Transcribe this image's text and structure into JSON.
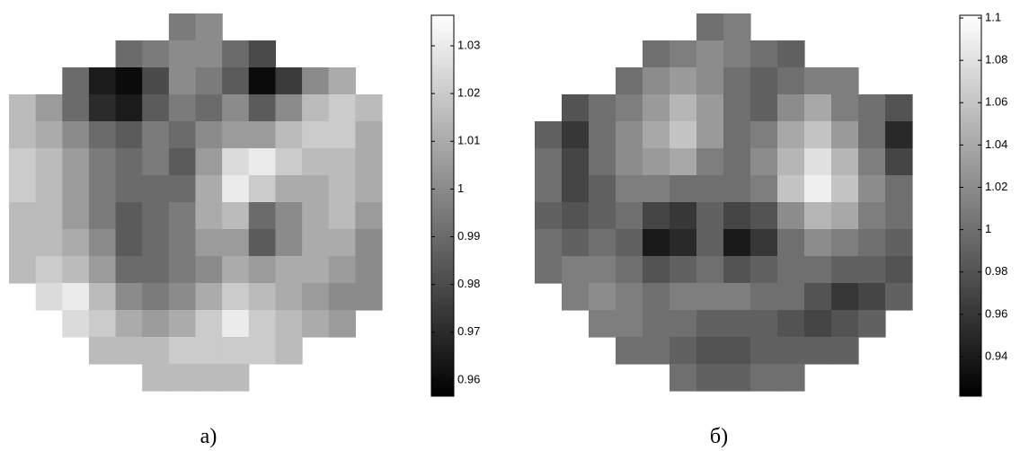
{
  "chart_data": [
    {
      "type": "heatmap",
      "caption": "а)",
      "zlim": [
        0.9566,
        1.0364
      ],
      "zticks": [
        0.96,
        0.97,
        0.98,
        0.99,
        1,
        1.01,
        1.02,
        1.03
      ],
      "values": [
        [
          null,
          null,
          null,
          null,
          null,
          null,
          0.995,
          1.0,
          null,
          null,
          null,
          null,
          null,
          null
        ],
        [
          null,
          null,
          null,
          null,
          0.99,
          0.995,
          1.0,
          1.0,
          0.99,
          0.98,
          null,
          null,
          null,
          null
        ],
        [
          null,
          null,
          0.99,
          0.965,
          0.96,
          0.98,
          1.0,
          0.995,
          0.985,
          0.96,
          0.975,
          1.0,
          1.01,
          null
        ],
        [
          1.015,
          1.005,
          0.99,
          0.97,
          0.965,
          0.985,
          0.995,
          0.99,
          1.0,
          0.985,
          1.0,
          1.015,
          1.02,
          1.015
        ],
        [
          1.015,
          1.01,
          1.0,
          0.99,
          0.985,
          0.995,
          0.99,
          1.0,
          1.005,
          1.005,
          1.015,
          1.02,
          1.02,
          1.01
        ],
        [
          1.02,
          1.015,
          1.005,
          0.995,
          0.99,
          0.995,
          0.985,
          1.005,
          1.025,
          1.03,
          1.02,
          1.015,
          1.015,
          1.01
        ],
        [
          1.02,
          1.015,
          1.005,
          0.995,
          0.99,
          0.99,
          0.99,
          1.01,
          1.03,
          1.02,
          1.01,
          1.01,
          1.015,
          1.01
        ],
        [
          1.015,
          1.015,
          1.005,
          0.995,
          0.985,
          0.99,
          0.995,
          1.01,
          1.015,
          0.99,
          1.0,
          1.01,
          1.015,
          1.005
        ],
        [
          1.015,
          1.015,
          1.01,
          1.0,
          0.985,
          0.99,
          0.995,
          1.005,
          1.005,
          0.985,
          1.0,
          1.01,
          1.01,
          1.0
        ],
        [
          1.015,
          1.02,
          1.015,
          1.005,
          0.99,
          0.99,
          0.995,
          1.0,
          1.01,
          1.005,
          1.01,
          1.01,
          1.005,
          1.0
        ],
        [
          null,
          1.025,
          1.03,
          1.015,
          1.0,
          0.995,
          1.0,
          1.01,
          1.02,
          1.015,
          1.01,
          1.005,
          1.0,
          1.0
        ],
        [
          null,
          null,
          1.025,
          1.02,
          1.01,
          1.005,
          1.01,
          1.02,
          1.03,
          1.02,
          1.015,
          1.01,
          1.005,
          null
        ],
        [
          null,
          null,
          null,
          1.015,
          1.015,
          1.015,
          1.02,
          1.02,
          1.02,
          1.02,
          1.015,
          null,
          null,
          null
        ],
        [
          null,
          null,
          null,
          null,
          null,
          1.015,
          1.015,
          1.015,
          1.015,
          null,
          null,
          null,
          null,
          null
        ]
      ]
    },
    {
      "type": "heatmap",
      "caption": "б)",
      "zlim": [
        0.9213,
        1.1013
      ],
      "zticks": [
        0.94,
        0.96,
        0.98,
        1,
        1.02,
        1.04,
        1.06,
        1.08,
        1.1
      ],
      "values": [
        [
          null,
          null,
          null,
          null,
          null,
          null,
          1.0,
          1.01,
          null,
          null,
          null,
          null,
          null,
          null
        ],
        [
          null,
          null,
          null,
          null,
          1.0,
          1.01,
          1.02,
          1.01,
          1.0,
          0.99,
          null,
          null,
          null,
          null
        ],
        [
          null,
          null,
          null,
          1.0,
          1.02,
          1.03,
          1.02,
          1.0,
          0.99,
          1.0,
          1.01,
          1.01,
          null,
          null
        ],
        [
          null,
          0.98,
          1.0,
          1.01,
          1.03,
          1.05,
          1.03,
          1.0,
          0.99,
          1.02,
          1.04,
          1.01,
          1.0,
          0.98
        ],
        [
          0.99,
          0.96,
          1.0,
          1.02,
          1.04,
          1.06,
          1.03,
          1.0,
          1.01,
          1.04,
          1.06,
          1.03,
          1.0,
          0.95
        ],
        [
          1.0,
          0.97,
          1.0,
          1.02,
          1.03,
          1.04,
          1.01,
          1.0,
          1.02,
          1.05,
          1.08,
          1.05,
          1.01,
          0.97
        ],
        [
          1.0,
          0.97,
          0.99,
          1.01,
          1.01,
          1.0,
          1.0,
          1.0,
          1.01,
          1.06,
          1.09,
          1.06,
          1.02,
          1.0
        ],
        [
          0.99,
          0.98,
          0.99,
          1.0,
          0.97,
          0.96,
          0.99,
          0.97,
          0.98,
          1.02,
          1.05,
          1.04,
          1.01,
          1.0
        ],
        [
          1.0,
          0.99,
          1.0,
          0.99,
          0.94,
          0.95,
          0.99,
          0.94,
          0.96,
          1.0,
          1.02,
          1.01,
          1.0,
          0.99
        ],
        [
          1.0,
          1.01,
          1.01,
          1.0,
          0.98,
          0.99,
          1.0,
          0.98,
          0.99,
          1.0,
          1.0,
          0.99,
          0.99,
          0.98
        ],
        [
          null,
          1.01,
          1.02,
          1.01,
          1.0,
          1.01,
          1.01,
          1.01,
          1.0,
          1.0,
          0.98,
          0.96,
          0.97,
          0.99
        ],
        [
          null,
          null,
          1.01,
          1.01,
          1.0,
          1.0,
          0.99,
          0.99,
          0.99,
          0.98,
          0.97,
          0.98,
          0.99,
          null
        ],
        [
          null,
          null,
          null,
          1.0,
          1.0,
          0.99,
          0.98,
          0.98,
          0.99,
          0.99,
          0.99,
          0.99,
          null,
          null
        ],
        [
          null,
          null,
          null,
          null,
          null,
          1.0,
          0.99,
          0.99,
          1.0,
          1.0,
          null,
          null,
          null,
          null
        ]
      ]
    }
  ]
}
